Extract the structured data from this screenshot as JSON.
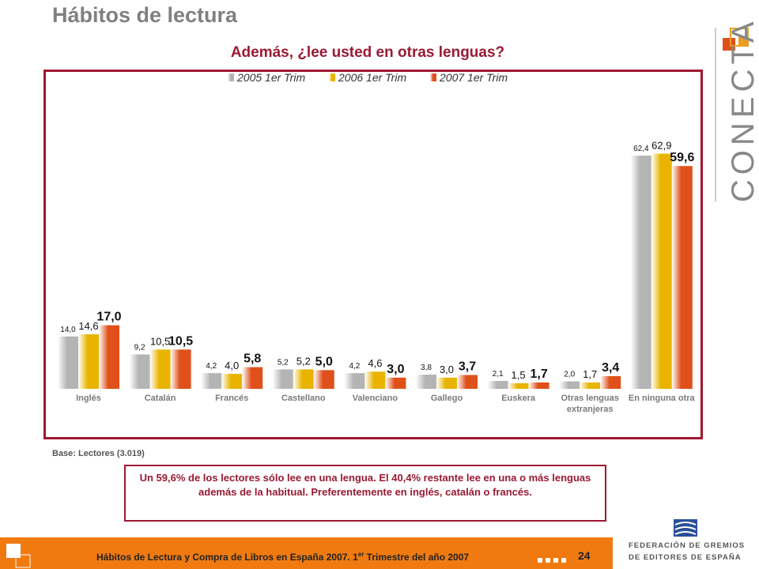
{
  "header": {
    "title": "Hábitos de lectura"
  },
  "chart_data": {
    "type": "bar",
    "title": "Además, ¿lee usted en otras lenguas?",
    "categories": [
      "Inglés",
      "Catalán",
      "Francés",
      "Castellano",
      "Valenciano",
      "Gallego",
      "Euskera",
      "Otras lenguas extranjeras",
      "En ninguna otra"
    ],
    "series": [
      {
        "name": "2005 1er Trim",
        "color": "#b4b4b4",
        "values": [
          14.0,
          9.2,
          4.2,
          5.2,
          4.2,
          3.8,
          2.1,
          2.0,
          62.4
        ],
        "value_labels": [
          "14,0",
          "9,2",
          "4,2",
          "5,2",
          "4,2",
          "3,8",
          "2,1",
          "2,0",
          "62,4"
        ]
      },
      {
        "name": "2006 1er Trim",
        "color": "#e8b400",
        "values": [
          14.6,
          10.5,
          4.0,
          5.2,
          4.6,
          3.0,
          1.5,
          1.7,
          62.9
        ],
        "value_labels": [
          "14,6",
          "10,5",
          "4,0",
          "5,2",
          "4,6",
          "3,0",
          "1,5",
          "1,7",
          "62,9"
        ]
      },
      {
        "name": "2007 1er Trim",
        "color": "#e0501a",
        "values": [
          17.0,
          10.5,
          5.8,
          5.0,
          3.0,
          3.7,
          1.7,
          3.4,
          59.6
        ],
        "value_labels": [
          "17,0",
          "10,5",
          "5,8",
          "5,0",
          "3,0",
          "3,7",
          "1,7",
          "3,4",
          "59,6"
        ]
      }
    ],
    "legend": "top"
  },
  "note": "Base: Lectores (3.019)",
  "summary": "Un 59,6% de los lectores sólo lee en una lengua. El 40,4% restante lee en una o más lenguas además de la habitual. Preferentemente en inglés, catalán o francés.",
  "footer": {
    "text": "Hábitos de Lectura y Compra de Libros en España 2007. 1",
    "superscript": "er",
    "text_end": " Trimestre del año 2007",
    "page": "24"
  },
  "logos": {
    "brand": "CONECTA",
    "federation_line1": "FEDERACIÓN DE GREMIOS",
    "federation_line2": "DE EDITORES DE ESPAÑA"
  }
}
